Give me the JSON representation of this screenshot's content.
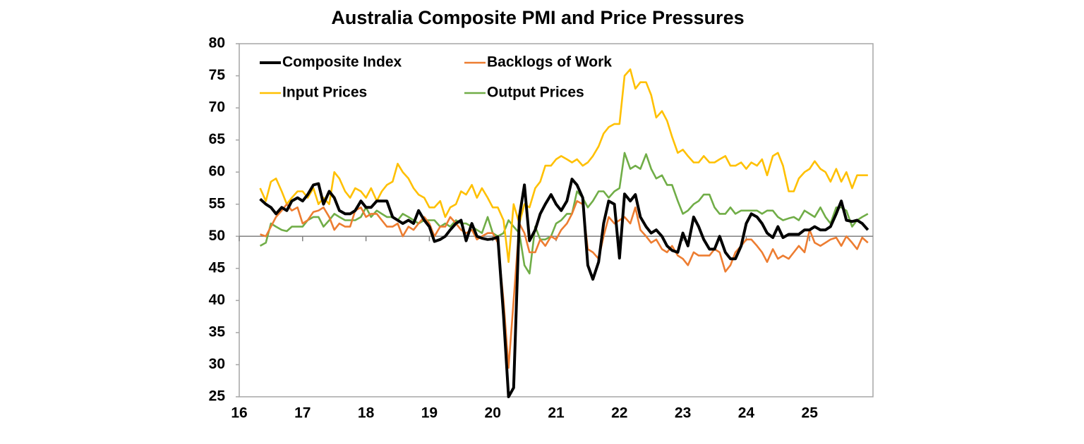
{
  "chart_data": {
    "type": "line",
    "title": "Australia Composite PMI and Price Pressures",
    "x": [
      16.33,
      16.42,
      16.5,
      16.58,
      16.67,
      16.75,
      16.83,
      16.92,
      17,
      17.08,
      17.17,
      17.25,
      17.33,
      17.42,
      17.5,
      17.58,
      17.67,
      17.75,
      17.83,
      17.92,
      18,
      18.08,
      18.17,
      18.25,
      18.33,
      18.42,
      18.5,
      18.58,
      18.67,
      18.75,
      18.83,
      18.92,
      19,
      19.08,
      19.17,
      19.25,
      19.33,
      19.42,
      19.5,
      19.58,
      19.67,
      19.75,
      19.83,
      19.92,
      20,
      20.08,
      20.17,
      20.25,
      20.33,
      20.42,
      20.5,
      20.58,
      20.67,
      20.75,
      20.83,
      20.92,
      21,
      21.08,
      21.17,
      21.25,
      21.33,
      21.42,
      21.5,
      21.58,
      21.67,
      21.75,
      21.83,
      21.92,
      22,
      22.08,
      22.17,
      22.25,
      22.33,
      22.42,
      22.5,
      22.58,
      22.67,
      22.75,
      22.83,
      22.92,
      23,
      23.08,
      23.17,
      23.25,
      23.33,
      23.42,
      23.5,
      23.58,
      23.67,
      23.75,
      23.83,
      23.92,
      24,
      24.08,
      24.17,
      24.25,
      24.33,
      24.42,
      24.5,
      24.58,
      24.67,
      24.75,
      24.83,
      24.92,
      25,
      25.08,
      25.17,
      25.25,
      25.33,
      25.42,
      25.5,
      25.58,
      25.67,
      25.75,
      25.83,
      25.92
    ],
    "series": [
      {
        "name": "Composite Index",
        "color": "#000000",
        "values": [
          55.8,
          55,
          54.5,
          53.5,
          54.5,
          54,
          55.5,
          56,
          55.5,
          56.5,
          58,
          58.2,
          55,
          57,
          56,
          54,
          53.5,
          53.5,
          54,
          55.5,
          54.5,
          54.5,
          55.5,
          55.5,
          55.5,
          53,
          52.5,
          52,
          52.5,
          52,
          54,
          52.5,
          51.5,
          49.2,
          49.5,
          50,
          51,
          52,
          52.5,
          49.3,
          52,
          50,
          49.7,
          49.5,
          49.6,
          49.9,
          37.6,
          25,
          26.4,
          53,
          58,
          49.3,
          51,
          53.5,
          55,
          56.5,
          55,
          54,
          55.5,
          58.9,
          58,
          56,
          45.5,
          43.3,
          46,
          52,
          55.5,
          55,
          46.6,
          56.6,
          55.5,
          56.5,
          53,
          51.5,
          50.5,
          51,
          50,
          48.5,
          47.8,
          47.5,
          50.5,
          48.5,
          53,
          51.5,
          49.5,
          48,
          48,
          50,
          47.5,
          46.5,
          46.5,
          48.5,
          52,
          53.5,
          53,
          52,
          50.5,
          49.8,
          51.5,
          49.8,
          50.3,
          50.3,
          50.3,
          51,
          51,
          51.5,
          51,
          51,
          51.5,
          53.5,
          55.5,
          52.5,
          52.3,
          52.5,
          52,
          51
        ]
      },
      {
        "name": "Backlogs of Work",
        "color": "#ed7d31",
        "values": [
          50.3,
          50,
          51.5,
          53,
          54,
          55,
          54,
          54.5,
          52,
          52.5,
          53.8,
          54,
          54.5,
          53,
          51,
          52,
          51.5,
          51.5,
          54,
          54.5,
          53,
          53.5,
          53.5,
          52.5,
          51.5,
          51.5,
          52,
          50,
          51.5,
          51,
          52,
          53,
          52,
          50,
          51.5,
          51.5,
          53,
          52,
          51,
          50.5,
          51,
          49.5,
          50,
          50.5,
          50.5,
          49,
          40,
          29.5,
          40,
          52,
          50.5,
          47.5,
          47.5,
          49.5,
          48.5,
          50,
          49.5,
          51,
          52,
          53.5,
          55.5,
          55,
          48,
          47.5,
          46.5,
          50,
          53,
          52,
          52.5,
          53,
          52,
          54.5,
          51,
          50,
          49,
          49.5,
          48,
          47.5,
          48.5,
          47,
          46.5,
          45.5,
          47.5,
          47,
          47,
          47,
          48,
          47.5,
          44.5,
          45.5,
          47.5,
          48.5,
          49.5,
          49.5,
          48.5,
          47.5,
          46,
          48,
          46.5,
          47,
          46.5,
          47.5,
          48.5,
          47.5,
          51,
          49,
          48.5,
          49,
          49.5,
          49.8,
          48.5,
          50,
          49,
          48,
          49.8,
          49
        ]
      },
      {
        "name": "Input Prices",
        "color": "#ffc000",
        "values": [
          57.5,
          55.5,
          58.5,
          59,
          57,
          55,
          56,
          57,
          57,
          56,
          57.5,
          55,
          56,
          55,
          60,
          59,
          57,
          56,
          57.5,
          57,
          56,
          57.5,
          55.5,
          57,
          58,
          58.5,
          61.3,
          60,
          59,
          57.5,
          56.5,
          56,
          54.5,
          54.5,
          55.5,
          53,
          54.5,
          55,
          57,
          56.5,
          58,
          56,
          57.5,
          56,
          54.5,
          54.5,
          52.5,
          46,
          55,
          52,
          55,
          54.5,
          57.5,
          58.5,
          61,
          61,
          62,
          62.5,
          62,
          61.5,
          62,
          61,
          61.5,
          62.5,
          64,
          66,
          67,
          67.5,
          67.5,
          75,
          76,
          73,
          74,
          74,
          72,
          68.5,
          69.5,
          68,
          65.5,
          63,
          63.5,
          62.5,
          61.5,
          61.5,
          62.5,
          61.5,
          61.5,
          62,
          62.5,
          61,
          61,
          61.5,
          60.5,
          61.5,
          61,
          62,
          59.5,
          62.5,
          63,
          61,
          57,
          57,
          59,
          60,
          60.5,
          61.7,
          60.5,
          60,
          58.5,
          60.5,
          58.5,
          60,
          57.5,
          59.5,
          59.5,
          59.5
        ]
      },
      {
        "name": "Output Prices",
        "color": "#70ad47",
        "values": [
          48.5,
          49,
          52,
          51.5,
          51,
          50.8,
          51.5,
          51.5,
          51.5,
          52.5,
          53,
          53,
          51.5,
          52.5,
          53.5,
          53,
          52.5,
          52.5,
          52.5,
          53,
          54.5,
          53,
          54,
          53.5,
          53,
          53,
          52.5,
          53.5,
          53,
          52.5,
          52,
          52.5,
          52.5,
          52.5,
          51.5,
          52,
          51.5,
          52.5,
          52,
          52,
          51.5,
          51,
          50.5,
          53,
          50.5,
          50,
          50.5,
          52.5,
          51.5,
          50.5,
          45.5,
          44.2,
          51.5,
          49.5,
          49.5,
          50,
          52,
          52.5,
          53.5,
          53.5,
          57,
          56,
          54.5,
          55.5,
          57,
          57,
          56,
          57,
          57.5,
          63,
          60.5,
          61,
          60.5,
          62.8,
          60.5,
          59,
          59.5,
          58,
          58,
          55.5,
          53.5,
          54,
          55,
          55.5,
          56.5,
          56.5,
          54.5,
          53.5,
          53.5,
          54.5,
          53.5,
          54,
          54,
          54,
          54,
          53.5,
          54,
          54,
          53,
          52.5,
          52.8,
          53,
          52.5,
          54,
          53.5,
          53,
          54.5,
          53,
          52,
          54.5,
          54.5,
          54,
          51.5,
          52.5,
          53,
          53.5
        ]
      }
    ],
    "xlim": [
      16,
      26
    ],
    "xticks": [
      16,
      17,
      18,
      19,
      20,
      21,
      22,
      23,
      24,
      25
    ],
    "ylim": [
      25,
      80
    ],
    "yticks": [
      25,
      30,
      35,
      40,
      45,
      50,
      55,
      60,
      65,
      70,
      75,
      80
    ],
    "xaxis_crosses": 50,
    "legend": "upper left"
  }
}
